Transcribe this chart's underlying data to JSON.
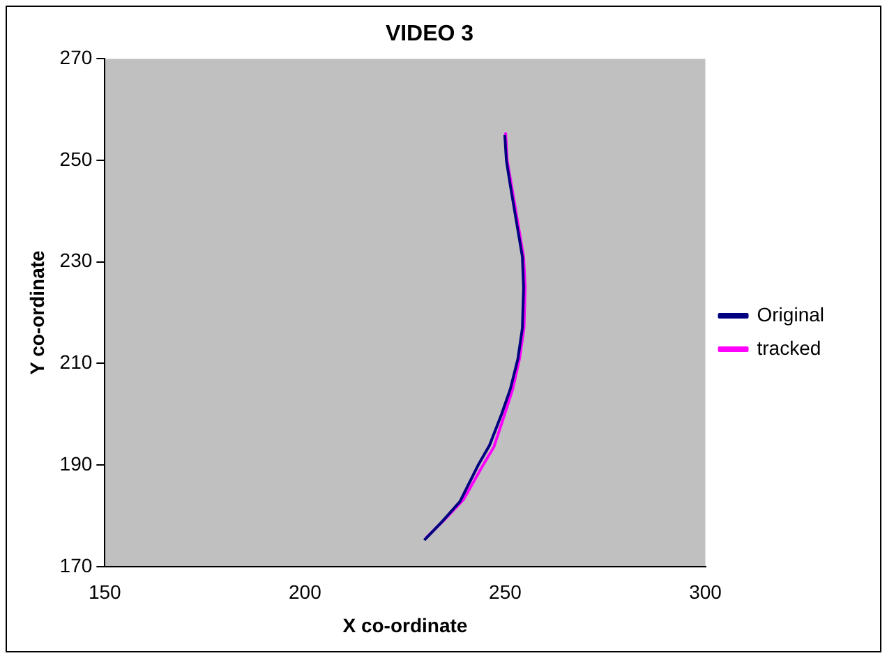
{
  "chart_data": {
    "type": "line",
    "title": "VIDEO 3",
    "xlabel": "X co-ordinate",
    "ylabel": "Y co-ordinate",
    "xlim": [
      150,
      300
    ],
    "xticks": [
      150,
      200,
      250,
      300
    ],
    "ylim": [
      170,
      270
    ],
    "yticks": [
      170,
      190,
      210,
      230,
      250,
      270
    ],
    "grid": false,
    "legend": "right",
    "marker": "none",
    "line_style": "solid",
    "series": [
      {
        "name": "Original",
        "color": "#000080",
        "x": [
          229.8,
          234.2,
          238.7,
          243.2,
          246.1,
          249.1,
          251.3,
          253.2,
          254.3,
          254.6,
          254.3,
          252.8,
          251.3,
          250.3,
          249.9
        ],
        "values": [
          175.2,
          178.8,
          182.8,
          189.9,
          193.9,
          200,
          205,
          211,
          217,
          225,
          231,
          238,
          245,
          250,
          255
        ]
      },
      {
        "name": "tracked",
        "color": "#ff00ff",
        "x": [
          230.2,
          234.8,
          239.6,
          244.2,
          247.2,
          249.8,
          251.9,
          253.6,
          254.7,
          255,
          254.6,
          253.1,
          251.6,
          250.5,
          250.1
        ],
        "values": [
          175.6,
          179.2,
          183.2,
          189.6,
          193.6,
          199.8,
          205,
          211,
          217,
          225,
          231,
          238,
          245,
          250,
          255.5
        ]
      }
    ]
  }
}
